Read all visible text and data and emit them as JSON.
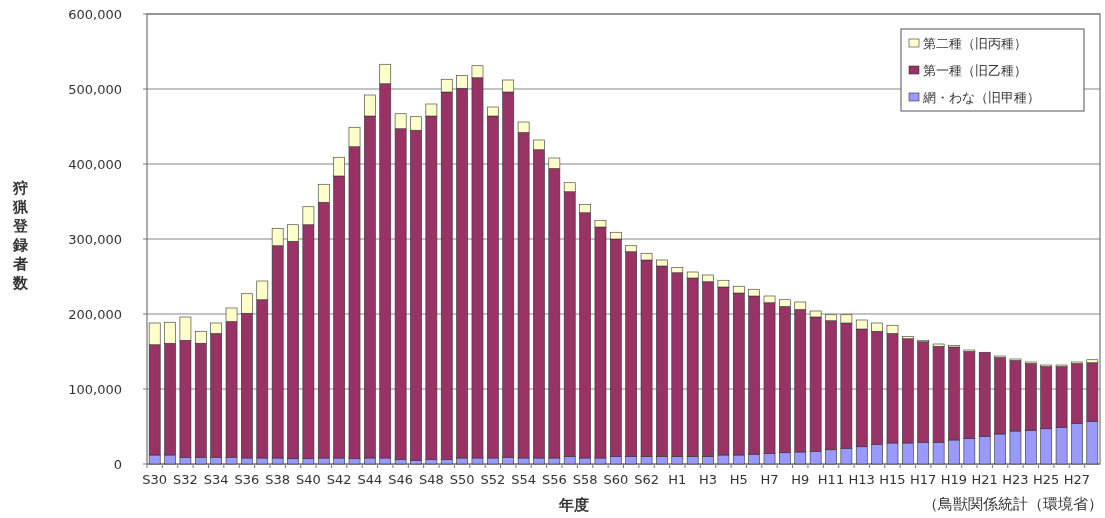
{
  "chart_data": {
    "type": "bar",
    "stacked": true,
    "xlabel": "年度",
    "ylabel": "狩猟登録者数",
    "annotations": [
      "（鳥獣関係統計（環境省）"
    ],
    "categories": [
      "S30",
      null,
      "S32",
      null,
      "S34",
      null,
      "S36",
      null,
      "S38",
      null,
      "S40",
      null,
      "S42",
      null,
      "S44",
      null,
      "S46",
      null,
      "S48",
      null,
      "S50",
      null,
      "S52",
      null,
      "S54",
      null,
      "S56",
      null,
      "S58",
      null,
      "S60",
      null,
      "S62",
      null,
      "H1",
      null,
      "H3",
      null,
      "H5",
      null,
      "H7",
      null,
      "H9",
      null,
      "H11",
      null,
      "H13",
      null,
      "H15",
      null,
      "H17",
      null,
      "H19",
      null,
      "H21",
      null,
      "H23",
      null,
      "H25",
      null,
      "H27",
      null
    ],
    "series": [
      {
        "name": "網・わな（旧甲種）",
        "color": "#9999ff",
        "values": [
          12000,
          12000,
          9000,
          9000,
          9000,
          9000,
          8000,
          8000,
          8000,
          7000,
          7000,
          8000,
          8000,
          7000,
          8000,
          8000,
          6000,
          5000,
          6000,
          6000,
          8000,
          8000,
          8000,
          9000,
          8000,
          8000,
          8000,
          10000,
          8000,
          8000,
          10000,
          10000,
          10000,
          10000,
          10000,
          10000,
          10000,
          12000,
          12000,
          13000,
          14000,
          15000,
          16000,
          17000,
          19000,
          21000,
          23000,
          26000,
          28000,
          28000,
          29000,
          29000,
          32000,
          34000,
          37000,
          40000,
          44000,
          45000,
          47000,
          49000,
          54000,
          57000
        ]
      },
      {
        "name": "第一種（旧乙種）",
        "color": "#993366",
        "values": [
          147000,
          149000,
          156000,
          152000,
          165000,
          181000,
          193000,
          211000,
          283000,
          290000,
          312000,
          341000,
          376000,
          416000,
          456000,
          499000,
          441000,
          440000,
          458000,
          490000,
          493000,
          507000,
          456000,
          487000,
          434000,
          411000,
          386000,
          353000,
          327000,
          308000,
          290000,
          273000,
          262000,
          254000,
          245000,
          238000,
          233000,
          224000,
          216000,
          211000,
          201000,
          195000,
          190000,
          179000,
          172000,
          167000,
          157000,
          151000,
          146000,
          139000,
          134000,
          128000,
          124000,
          116000,
          112000,
          102000,
          94000,
          89000,
          83000,
          81000,
          80000,
          78000
        ]
      },
      {
        "name": "第二種（旧丙種）",
        "color": "#ffffcc",
        "values": [
          29000,
          28000,
          31000,
          16000,
          14000,
          18000,
          26000,
          25000,
          23000,
          22000,
          24000,
          24000,
          25000,
          26000,
          28000,
          26000,
          20000,
          18000,
          16000,
          17000,
          17000,
          16000,
          12000,
          16000,
          14000,
          13000,
          14000,
          12000,
          11000,
          9000,
          9000,
          8000,
          9000,
          8000,
          7000,
          8000,
          9000,
          9000,
          9000,
          9000,
          9000,
          9000,
          10000,
          8000,
          8000,
          11000,
          12000,
          11000,
          11000,
          3000,
          2000,
          3000,
          2000,
          2000,
          null,
          2000,
          2000,
          2000,
          2000,
          2000,
          2000,
          4000
        ]
      }
    ],
    "ylim": [
      0,
      600000
    ],
    "yticks": [
      {
        "value": 0,
        "label": "0"
      },
      {
        "value": 100000,
        "label": "100,000"
      },
      {
        "value": 200000,
        "label": "200,000"
      },
      {
        "value": 300000,
        "label": "300,000"
      },
      {
        "value": 400000,
        "label": "400,000"
      },
      {
        "value": 500000,
        "label": "500,000"
      },
      {
        "value": 600000,
        "label": "600,000"
      }
    ],
    "grid": "y",
    "legend": "top right"
  }
}
